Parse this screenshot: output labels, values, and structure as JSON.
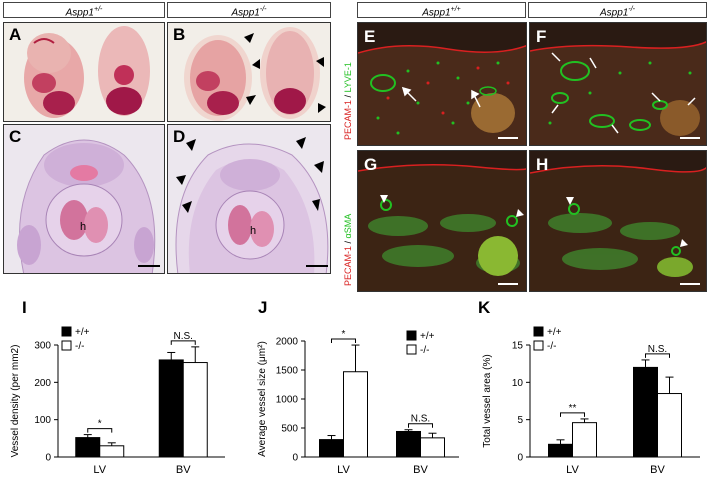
{
  "headers": {
    "left_het": "Aspp1",
    "left_het_sup": "+/-",
    "left_ko": "Aspp1",
    "left_ko_sup": "-/-",
    "right_wt": "Aspp1",
    "right_wt_sup": "+/+",
    "right_ko": "Aspp1",
    "right_ko_sup": "-/-"
  },
  "panels": {
    "A": "A",
    "B": "B",
    "C": "C",
    "D": "D",
    "E": "E",
    "F": "F",
    "G": "G",
    "H": "H",
    "I": "I",
    "J": "J",
    "K": "K"
  },
  "image_labels": {
    "heart_c": "h",
    "heart_d": "h",
    "stain_top_red": "PECAM-1",
    "stain_top_sep": " / ",
    "stain_top_green": "LYVE-1",
    "stain_bottom_red": "PECAM-1",
    "stain_bottom_sep": " / ",
    "stain_bottom_green": "αSMA"
  },
  "colors": {
    "red_stain": "#d92020",
    "green_stain": "#22c022",
    "bar_fill": "#000000",
    "bar_open": "#ffffff"
  },
  "chart_data": [
    {
      "id": "I",
      "type": "bar",
      "categories": [
        "LV",
        "BV"
      ],
      "series": [
        {
          "name": "+/+",
          "fill": "#000000",
          "values": [
            52,
            260
          ],
          "errors": [
            8,
            20
          ]
        },
        {
          "name": "-/-",
          "fill": "#ffffff",
          "values": [
            30,
            253
          ],
          "errors": [
            8,
            42
          ]
        }
      ],
      "ylabel": "Vessel density (per mm2)",
      "ylim": [
        0,
        300
      ],
      "yticks": [
        "0",
        "100",
        "200",
        "300"
      ],
      "annotations": [
        {
          "text": "*",
          "category": "LV"
        },
        {
          "text": "N.S.",
          "category": "BV"
        }
      ],
      "legend": "top-left"
    },
    {
      "id": "J",
      "type": "bar",
      "categories": [
        "LV",
        "BV"
      ],
      "series": [
        {
          "name": "+/+",
          "fill": "#000000",
          "values": [
            300,
            440
          ],
          "errors": [
            70,
            30
          ]
        },
        {
          "name": "-/-",
          "fill": "#ffffff",
          "values": [
            1470,
            330
          ],
          "errors": [
            460,
            80
          ]
        }
      ],
      "ylabel": "Average vessel size (μm²)",
      "ylim": [
        0,
        2000
      ],
      "yticks": [
        "0",
        "500",
        "1000",
        "1500",
        "2000"
      ],
      "annotations": [
        {
          "text": "*",
          "category": "LV"
        },
        {
          "text": "N.S.",
          "category": "BV"
        }
      ],
      "legend": "top-right"
    },
    {
      "id": "K",
      "type": "bar",
      "categories": [
        "LV",
        "BV"
      ],
      "series": [
        {
          "name": "+/+",
          "fill": "#000000",
          "values": [
            1.7,
            12.0
          ],
          "errors": [
            0.6,
            1.0
          ]
        },
        {
          "name": "-/-",
          "fill": "#ffffff",
          "values": [
            4.6,
            8.5
          ],
          "errors": [
            0.5,
            2.2
          ]
        }
      ],
      "ylabel": "Total vessel area (%)",
      "ylim": [
        0,
        15
      ],
      "yticks": [
        "0",
        "5",
        "10",
        "15"
      ],
      "annotations": [
        {
          "text": "**",
          "category": "LV"
        },
        {
          "text": "N.S.",
          "category": "BV"
        }
      ],
      "legend": "top-left"
    }
  ]
}
